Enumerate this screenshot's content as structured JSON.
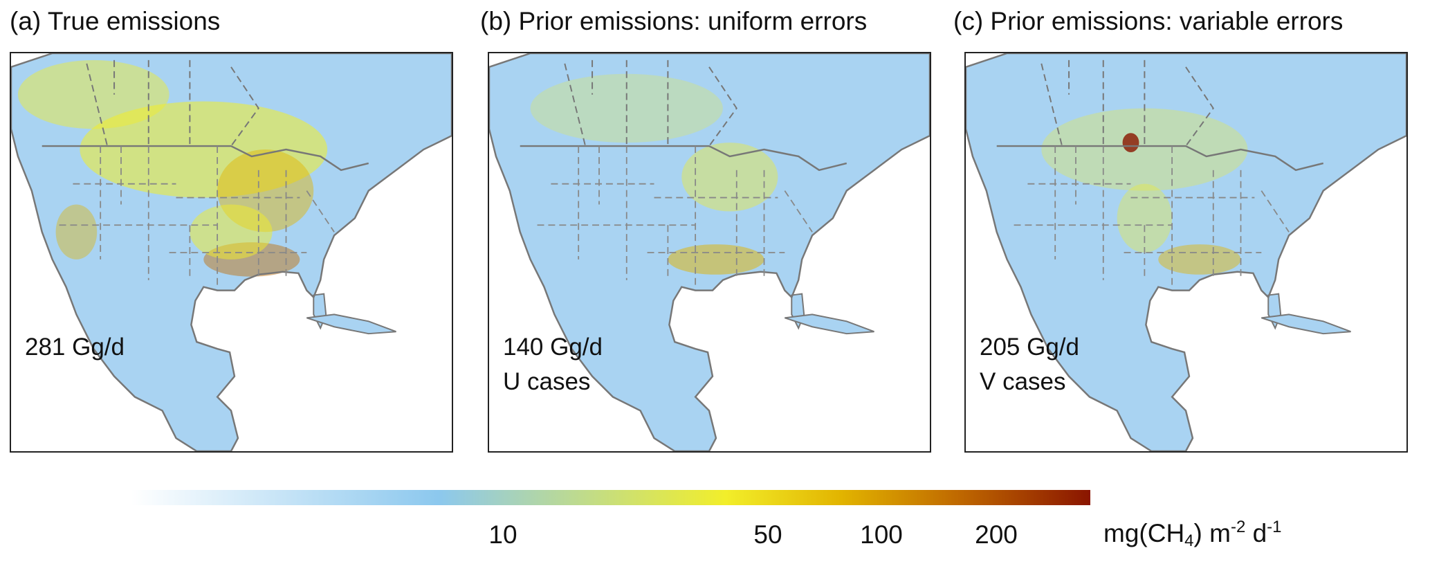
{
  "panels": [
    {
      "title": "(a) True emissions",
      "labels": [
        "281 Gg/d"
      ],
      "variant": "true"
    },
    {
      "title": "(b) Prior emissions: uniform errors",
      "labels": [
        "140 Gg/d",
        "U cases"
      ],
      "variant": "uniform"
    },
    {
      "title": "(c) Prior emissions: variable errors",
      "labels": [
        "205 Gg/d",
        "V cases"
      ],
      "variant": "variable"
    }
  ],
  "colorbar": {
    "ticks": [
      "10",
      "50",
      "100",
      "200"
    ],
    "unit_prefix": "mg(CH",
    "unit_sub": "4",
    "unit_mid": ") m",
    "unit_sup1": "-2",
    "unit_mid2": " d",
    "unit_sup2": "-1",
    "colors": [
      "#ffffff",
      "#8cc8ee",
      "#f2ee2a",
      "#e2b400",
      "#c06a00",
      "#8a1500"
    ]
  }
}
